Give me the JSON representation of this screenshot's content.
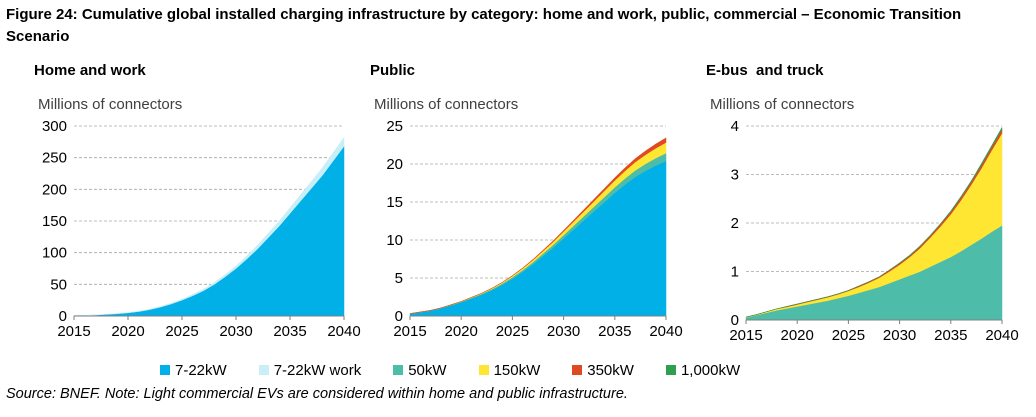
{
  "figure": {
    "title": "Figure 24: Cumulative global installed charging infrastructure by category: home and work, public, commercial – Economic Transition Scenario",
    "source": "Source: BNEF. Note: Light commercial EVs are considered within home and public infrastructure."
  },
  "legend": [
    {
      "label": "7-22kW",
      "color": "#00B0E6"
    },
    {
      "label": "7-22kW work",
      "color": "#C8EEF8"
    },
    {
      "label": "50kW",
      "color": "#4DBDAA"
    },
    {
      "label": "150kW",
      "color": "#FFE633"
    },
    {
      "label": "350kW",
      "color": "#E04A22"
    },
    {
      "label": "1,000kW",
      "color": "#2E9E4F"
    }
  ],
  "chart_data": [
    {
      "type": "area",
      "stacked": true,
      "title": "Home and work",
      "ylabel": "Millions of connectors",
      "ylim": [
        0,
        300
      ],
      "yticks": [
        0,
        50,
        100,
        150,
        200,
        250,
        300
      ],
      "xticks": [
        2015,
        2020,
        2025,
        2030,
        2035,
        2040
      ],
      "grid": true,
      "x": [
        2015,
        2016,
        2017,
        2018,
        2019,
        2020,
        2021,
        2022,
        2023,
        2024,
        2025,
        2026,
        2027,
        2028,
        2029,
        2030,
        2031,
        2032,
        2033,
        2034,
        2035,
        2036,
        2037,
        2038,
        2039,
        2040
      ],
      "series": [
        {
          "name": "7-22kW",
          "color": "#00B0E6",
          "values": [
            0.5,
            1,
            1.5,
            2.5,
            3.5,
            5,
            7,
            10,
            14,
            19,
            25,
            32,
            40,
            50,
            62,
            75,
            90,
            106,
            124,
            142,
            162,
            182,
            202,
            222,
            245,
            268
          ]
        },
        {
          "name": "7-22kW work",
          "color": "#C8EEF8",
          "values": [
            0.1,
            0.1,
            0.2,
            0.3,
            0.4,
            0.5,
            0.6,
            0.8,
            1,
            1.2,
            1.5,
            2,
            2.5,
            3,
            3.5,
            4,
            5,
            6,
            7,
            8,
            9,
            10,
            11,
            12,
            13,
            14
          ]
        }
      ]
    },
    {
      "type": "area",
      "stacked": true,
      "title": "Public",
      "ylabel": "Millions of connectors",
      "ylim": [
        0,
        25
      ],
      "yticks": [
        0,
        5,
        10,
        15,
        20,
        25
      ],
      "xticks": [
        2015,
        2020,
        2025,
        2030,
        2035,
        2040
      ],
      "grid": true,
      "x": [
        2015,
        2016,
        2017,
        2018,
        2019,
        2020,
        2021,
        2022,
        2023,
        2024,
        2025,
        2026,
        2027,
        2028,
        2029,
        2030,
        2031,
        2032,
        2033,
        2034,
        2035,
        2036,
        2037,
        2038,
        2039,
        2040
      ],
      "series": [
        {
          "name": "7-22kW",
          "color": "#00B0E6",
          "values": [
            0.3,
            0.5,
            0.7,
            1,
            1.4,
            1.8,
            2.3,
            2.8,
            3.4,
            4.1,
            4.9,
            5.8,
            6.8,
            7.9,
            9,
            10.2,
            11.4,
            12.6,
            13.8,
            15,
            16.2,
            17.3,
            18.3,
            19.1,
            19.8,
            20.4
          ]
        },
        {
          "name": "50kW",
          "color": "#4DBDAA",
          "values": [
            0.02,
            0.03,
            0.04,
            0.05,
            0.06,
            0.08,
            0.1,
            0.12,
            0.14,
            0.17,
            0.2,
            0.24,
            0.28,
            0.33,
            0.38,
            0.44,
            0.5,
            0.56,
            0.62,
            0.68,
            0.74,
            0.8,
            0.86,
            0.92,
            0.98,
            1.03
          ]
        },
        {
          "name": "150kW",
          "color": "#FFE633",
          "values": [
            0,
            0,
            0,
            0.01,
            0.02,
            0.03,
            0.05,
            0.07,
            0.1,
            0.13,
            0.17,
            0.22,
            0.27,
            0.33,
            0.4,
            0.47,
            0.55,
            0.63,
            0.72,
            0.81,
            0.9,
            1,
            1.1,
            1.2,
            1.3,
            1.4
          ]
        },
        {
          "name": "350kW",
          "color": "#E04A22",
          "values": [
            0,
            0,
            0,
            0,
            0,
            0,
            0.01,
            0.01,
            0.02,
            0.03,
            0.04,
            0.06,
            0.08,
            0.1,
            0.13,
            0.16,
            0.19,
            0.23,
            0.27,
            0.31,
            0.35,
            0.4,
            0.45,
            0.5,
            0.55,
            0.6
          ]
        }
      ]
    },
    {
      "type": "area",
      "stacked": true,
      "title": "E-bus  and truck",
      "ylabel": "Millions of connectors",
      "ylim": [
        0,
        4
      ],
      "yticks": [
        0,
        1,
        2,
        3,
        4
      ],
      "xticks": [
        2015,
        2020,
        2025,
        2030,
        2035,
        2040
      ],
      "grid": true,
      "x": [
        2015,
        2016,
        2017,
        2018,
        2019,
        2020,
        2021,
        2022,
        2023,
        2024,
        2025,
        2026,
        2027,
        2028,
        2029,
        2030,
        2031,
        2032,
        2033,
        2034,
        2035,
        2036,
        2037,
        2038,
        2039,
        2040
      ],
      "series": [
        {
          "name": "50kW",
          "color": "#4DBDAA",
          "values": [
            0.05,
            0.1,
            0.15,
            0.2,
            0.24,
            0.28,
            0.32,
            0.36,
            0.4,
            0.45,
            0.5,
            0.56,
            0.62,
            0.68,
            0.76,
            0.84,
            0.92,
            1.0,
            1.1,
            1.2,
            1.3,
            1.42,
            1.55,
            1.68,
            1.82,
            1.95
          ]
        },
        {
          "name": "150kW",
          "color": "#FFE633",
          "values": [
            0.01,
            0.01,
            0.02,
            0.03,
            0.03,
            0.04,
            0.05,
            0.06,
            0.07,
            0.08,
            0.1,
            0.12,
            0.15,
            0.19,
            0.24,
            0.3,
            0.38,
            0.48,
            0.6,
            0.73,
            0.88,
            1.05,
            1.24,
            1.45,
            1.68,
            1.9
          ]
        },
        {
          "name": "350kW",
          "color": "#E04A22",
          "values": [
            0,
            0,
            0,
            0,
            0.01,
            0.01,
            0.01,
            0.01,
            0.01,
            0.01,
            0.01,
            0.02,
            0.02,
            0.02,
            0.03,
            0.03,
            0.03,
            0.04,
            0.04,
            0.05,
            0.05,
            0.06,
            0.06,
            0.07,
            0.07,
            0.08
          ]
        },
        {
          "name": "1,000kW",
          "color": "#2E9E4F",
          "values": [
            0,
            0,
            0,
            0,
            0,
            0,
            0,
            0,
            0,
            0,
            0,
            0,
            0,
            0,
            0,
            0.01,
            0.01,
            0.01,
            0.01,
            0.01,
            0.02,
            0.02,
            0.02,
            0.03,
            0.03,
            0.04
          ]
        }
      ]
    }
  ]
}
